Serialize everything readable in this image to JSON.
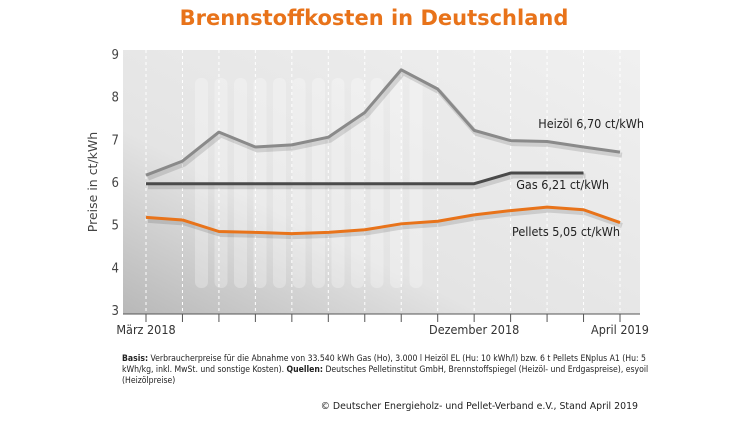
{
  "chart_data": {
    "type": "line",
    "title": "Brennstoffkosten in Deutschland",
    "ylabel": "Preise in ct/kWh",
    "xlabel": "",
    "x": [
      "2018-03",
      "2018-04",
      "2018-05",
      "2018-06",
      "2018-07",
      "2018-08",
      "2018-09",
      "2018-10",
      "2018-11",
      "2018-12",
      "2019-01",
      "2019-02",
      "2019-03",
      "2019-04"
    ],
    "x_tick_labels": [
      {
        "x": "2018-03",
        "label": "März 2018"
      },
      {
        "x": "2018-12",
        "label": "Dezember 2018"
      },
      {
        "x": "2019-04",
        "label": "April 2019"
      }
    ],
    "ylim": [
      3,
      9
    ],
    "yticks": [
      3,
      4,
      5,
      6,
      7,
      8,
      9
    ],
    "grid": "vertical dashed",
    "series": [
      {
        "name": "Heizöl",
        "label": "Heizöl 6,70 ct/kWh",
        "color": "#8a8a8a",
        "values": [
          6.16,
          6.49,
          7.17,
          6.82,
          6.87,
          7.05,
          7.63,
          8.63,
          8.18,
          7.21,
          6.97,
          6.95,
          6.82,
          6.7
        ]
      },
      {
        "name": "Gas",
        "label": "Gas 6,21 ct/kWh",
        "color": "#4a4a4a",
        "values": [
          5.96,
          5.96,
          5.96,
          5.96,
          5.96,
          5.96,
          5.96,
          5.96,
          5.96,
          5.96,
          6.21,
          6.21,
          6.21,
          null
        ]
      },
      {
        "name": "Pellets",
        "label": "Pellets 5,05 ct/kWh",
        "color": "#e8731a",
        "values": [
          5.17,
          5.11,
          4.84,
          4.82,
          4.79,
          4.82,
          4.88,
          5.02,
          5.08,
          5.23,
          5.33,
          5.41,
          5.35,
          5.05
        ]
      }
    ]
  },
  "footnote": {
    "basis_label": "Basis:",
    "basis_text": " Verbraucherpreise für die Abnahme von 33.540 kWh Gas (Ho), 3.000 l Heizöl EL (Hu: 10 kWh/l) bzw. 6 t Pellets ENplus A1 (Hu: 5 kWh/kg, inkl. MwSt. und sonstige Kosten). ",
    "sources_label": "Quellen:",
    "sources_text": " Deutsches Pelletinstitut GmbH, Brennstoffspiegel (Heizöl- und Erdgaspreise), esyoil (Heizölpreise)",
    "copyright": "© Deutscher Energieholz- und Pellet-Verband e.V., Stand April 2019"
  }
}
